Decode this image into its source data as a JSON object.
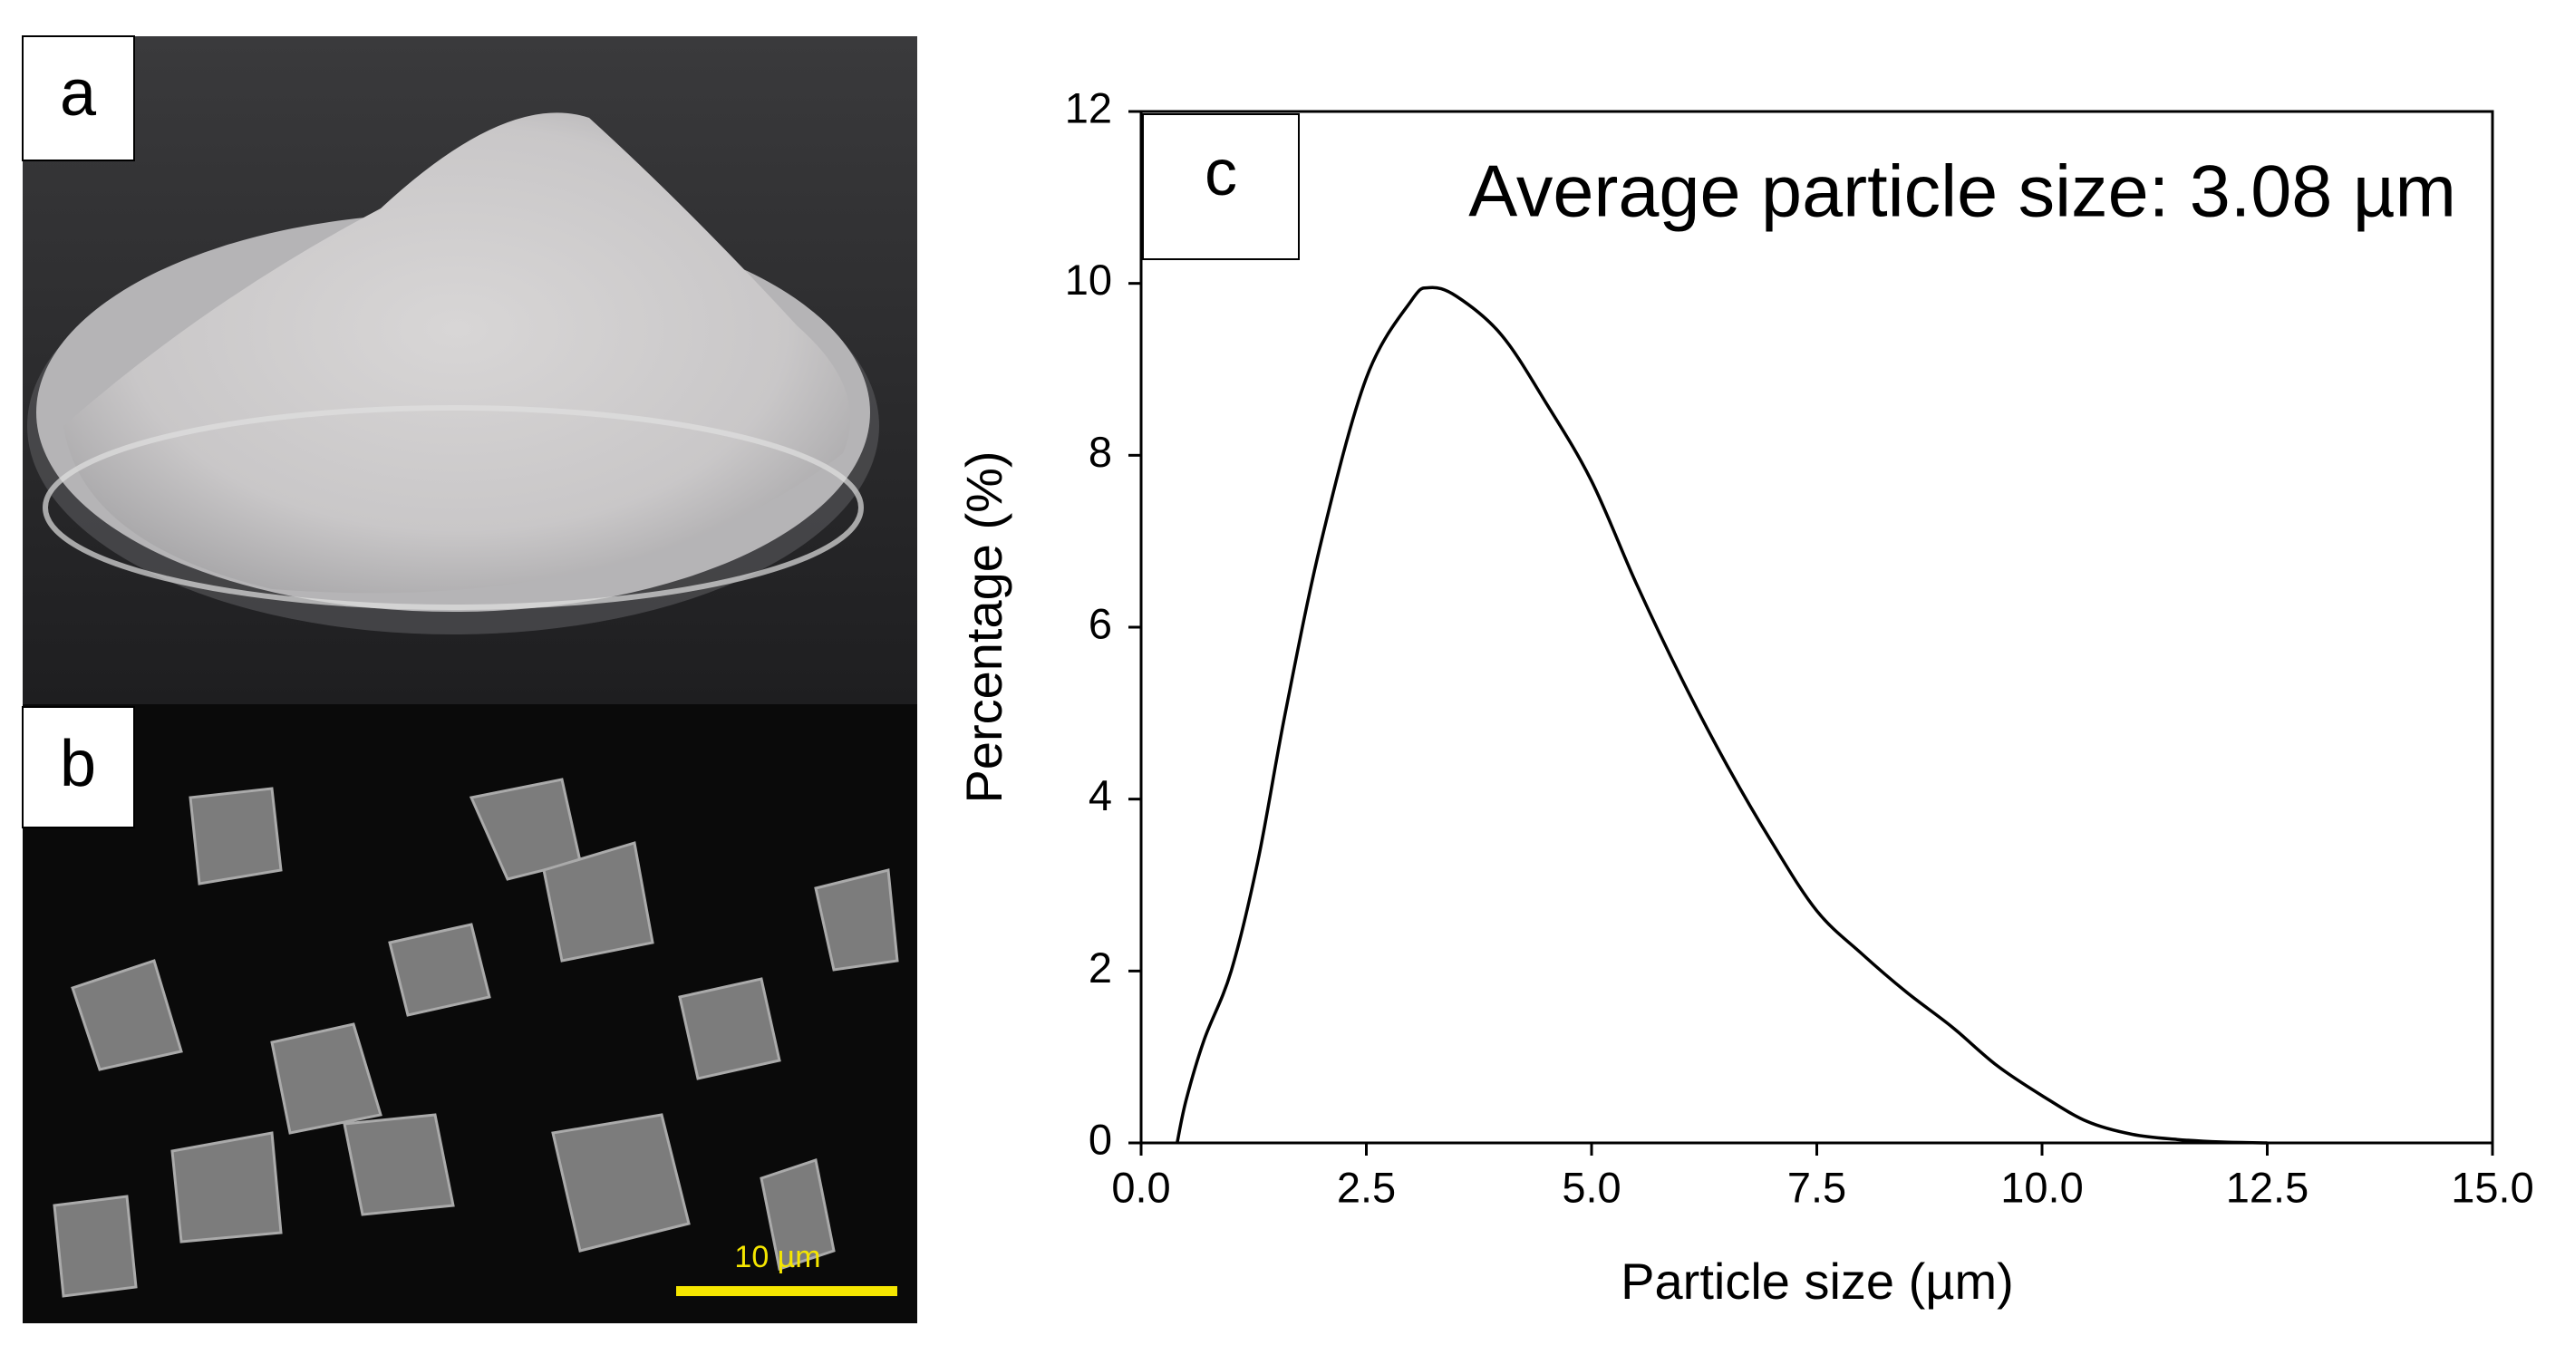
{
  "image_panels": [
    {
      "label": "a"
    },
    {
      "label": "b",
      "scale_bar": "10 µm"
    }
  ],
  "chart_data": {
    "type": "line",
    "panel_label": "c",
    "annotation": "Average particle size: 3.08 µm",
    "xlabel": "Particle size (µm)",
    "ylabel": "Percentage (%)",
    "x": [
      0.4,
      0.5,
      0.7,
      1.0,
      1.3,
      1.6,
      2.0,
      2.5,
      3.0,
      3.2,
      3.5,
      4.0,
      4.5,
      5.0,
      5.5,
      6.0,
      6.5,
      7.0,
      7.5,
      8.0,
      8.5,
      9.0,
      9.5,
      10.0,
      10.5,
      11.0,
      11.5,
      12.0,
      12.5
    ],
    "series": [
      {
        "color": "#000000",
        "values": [
          0,
          0.5,
          1.2,
          2.0,
          3.3,
          5.0,
          7.0,
          8.9,
          9.8,
          9.95,
          9.85,
          9.4,
          8.6,
          7.7,
          6.5,
          5.4,
          4.4,
          3.5,
          2.7,
          2.2,
          1.75,
          1.35,
          0.9,
          0.55,
          0.25,
          0.1,
          0.04,
          0.01,
          0
        ]
      }
    ],
    "xlim": [
      0,
      15
    ],
    "ylim": [
      0,
      12
    ],
    "xticks": [
      {
        "value": 0,
        "label": "0.0"
      },
      {
        "value": 2.5,
        "label": "2.5"
      },
      {
        "value": 5,
        "label": "5.0"
      },
      {
        "value": 7.5,
        "label": "7.5"
      },
      {
        "value": 10,
        "label": "10.0"
      },
      {
        "value": 12.5,
        "label": "12.5"
      },
      {
        "value": 15,
        "label": "15.0"
      }
    ],
    "yticks": [
      0,
      2,
      4,
      6,
      8,
      10,
      12
    ],
    "grid": false
  }
}
